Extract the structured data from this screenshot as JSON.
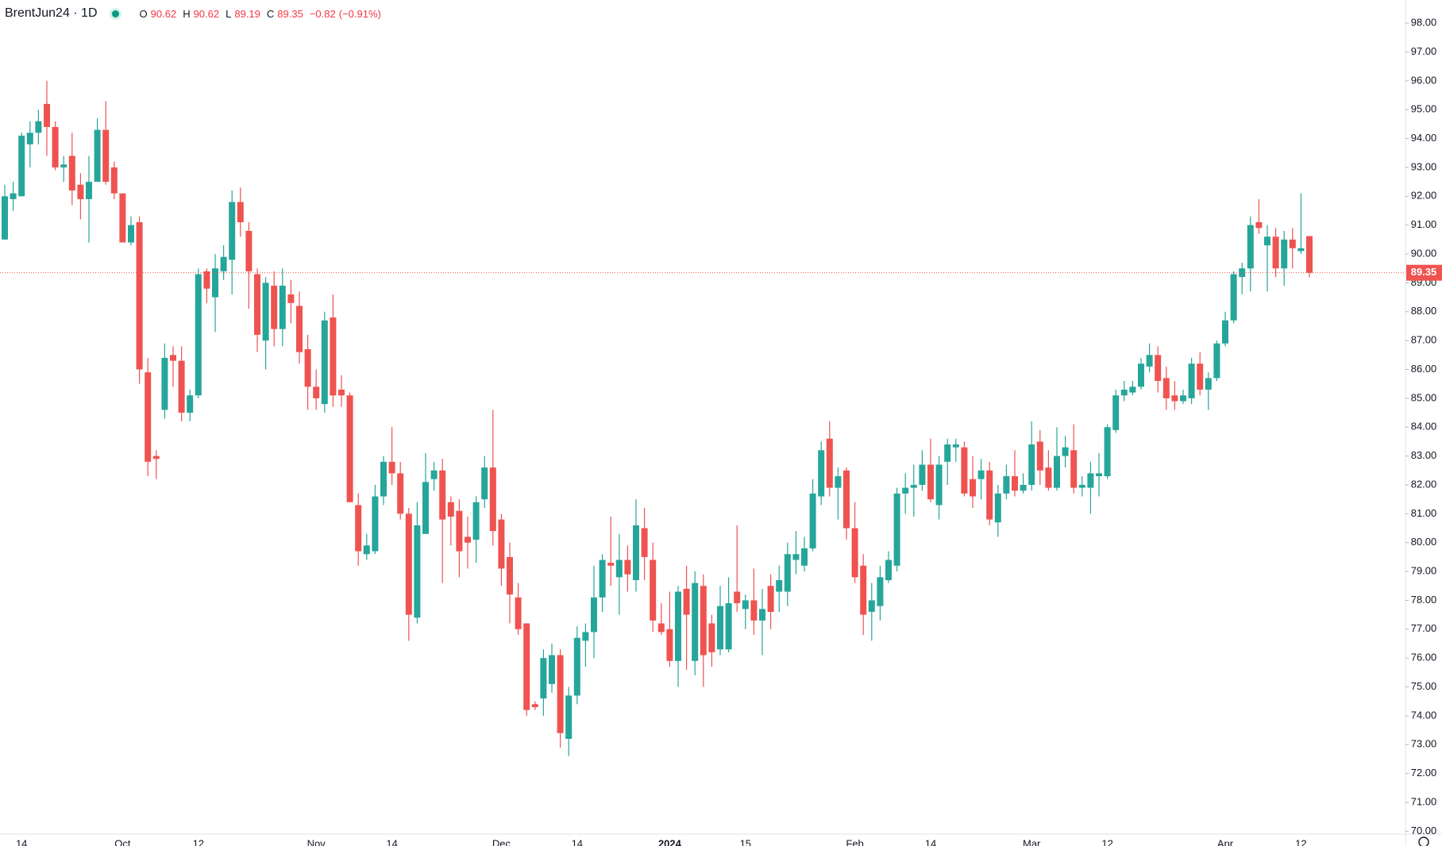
{
  "chart_data": {
    "type": "candlestick",
    "title": "BrentJun24 · 1D",
    "ohlc_labels": [
      "O",
      "H",
      "L",
      "C"
    ],
    "change": "−0.82",
    "change_percent": "(−0.91%)",
    "up_color": "#26a69a",
    "down_color": "#ef5350",
    "categories": [
      null,
      null,
      "14",
      null,
      null,
      null,
      null,
      null,
      null,
      null,
      null,
      null,
      null,
      null,
      "Oct",
      null,
      null,
      null,
      null,
      null,
      null,
      null,
      null,
      "12",
      null,
      null,
      null,
      null,
      null,
      null,
      null,
      null,
      null,
      null,
      null,
      null,
      null,
      "Nov",
      null,
      null,
      null,
      null,
      null,
      null,
      null,
      null,
      "14",
      null,
      null,
      null,
      null,
      null,
      null,
      null,
      null,
      null,
      null,
      null,
      null,
      "Dec",
      null,
      null,
      null,
      null,
      null,
      null,
      null,
      null,
      "14",
      null,
      null,
      null,
      null,
      null,
      null,
      null,
      null,
      null,
      null,
      "2024",
      null,
      null,
      null,
      null,
      null,
      null,
      null,
      null,
      "15",
      null,
      null,
      null,
      null,
      null,
      null,
      null,
      null,
      null,
      null,
      null,
      null,
      "Feb",
      null,
      null,
      null,
      null,
      null,
      null,
      null,
      null,
      "14",
      null,
      null,
      null,
      null,
      null,
      null,
      null,
      null,
      null,
      null,
      null,
      "Mar",
      null,
      null,
      null,
      null,
      null,
      null,
      null,
      null,
      "12",
      null,
      null,
      null,
      null,
      null,
      null,
      null,
      null,
      null,
      null,
      null,
      null,
      null,
      "Apr",
      null,
      null,
      null,
      null,
      null,
      null,
      null,
      null,
      "12",
      null
    ],
    "open": [
      90.5,
      91.9,
      92.0,
      93.8,
      94.2,
      95.2,
      94.4,
      93.0,
      93.4,
      92.4,
      91.9,
      92.5,
      94.3,
      93.0,
      92.1,
      90.4,
      91.1,
      85.9,
      83.0,
      84.6,
      86.5,
      86.3,
      84.5,
      85.1,
      89.4,
      88.5,
      89.4,
      89.8,
      91.8,
      90.8,
      89.3,
      87.0,
      88.9,
      87.4,
      88.6,
      88.2,
      86.7,
      85.4,
      84.8,
      87.8,
      85.3,
      85.1,
      81.3,
      79.6,
      79.7,
      81.6,
      82.8,
      82.4,
      81.0,
      77.4,
      80.3,
      82.2,
      82.5,
      81.4,
      81.1,
      80.2,
      80.1,
      81.5,
      82.6,
      80.8,
      79.5,
      78.1,
      77.2,
      74.4,
      74.6,
      75.1,
      76.1,
      73.2,
      74.7,
      76.6,
      76.9,
      78.1,
      79.3,
      78.8,
      79.4,
      78.7,
      80.5,
      79.4,
      77.2,
      77.0,
      75.9,
      78.4,
      75.9,
      78.5,
      77.2,
      76.3,
      76.3,
      78.3,
      77.7,
      78.0,
      77.3,
      78.5,
      78.3,
      78.3,
      79.4,
      79.2,
      79.8,
      81.6,
      83.6,
      81.9,
      82.5,
      80.5,
      79.2,
      77.6,
      77.8,
      78.7,
      79.2,
      81.7,
      81.9,
      82.0,
      82.7,
      81.3,
      82.8,
      83.3,
      83.3,
      82.2,
      82.2,
      82.5,
      80.7,
      81.7,
      82.3,
      81.8,
      82.0,
      83.5,
      82.6,
      81.9,
      83.0,
      83.2,
      81.9,
      81.9,
      82.3,
      82.3,
      83.9,
      85.1,
      85.2,
      85.4,
      86.1,
      86.5,
      85.7,
      85.1,
      84.9,
      85.0,
      86.2,
      85.3,
      85.7,
      86.9,
      87.7,
      89.2,
      89.5,
      91.1,
      90.3,
      90.6,
      89.5,
      90.5,
      90.1,
      90.62
    ],
    "high": [
      92.4,
      92.5,
      94.2,
      94.6,
      95.0,
      96.0,
      94.6,
      93.4,
      94.2,
      92.8,
      93.4,
      94.7,
      95.3,
      93.2,
      92.1,
      91.3,
      91.3,
      86.4,
      83.2,
      86.9,
      86.8,
      86.8,
      85.3,
      89.5,
      89.5,
      90.0,
      90.3,
      92.2,
      92.3,
      91.1,
      89.5,
      89.2,
      89.4,
      89.5,
      89.1,
      88.7,
      87.2,
      86.0,
      88.0,
      88.6,
      85.8,
      85.2,
      81.7,
      80.3,
      82.0,
      83.0,
      84.0,
      82.8,
      81.2,
      81.4,
      83.1,
      82.8,
      82.9,
      81.6,
      81.5,
      80.9,
      81.6,
      83.0,
      84.6,
      81.0,
      80.0,
      78.6,
      77.2,
      74.5,
      76.3,
      76.5,
      76.3,
      75.0,
      77.1,
      77.2,
      79.2,
      79.6,
      80.9,
      80.3,
      79.9,
      81.5,
      81.2,
      80.0,
      77.9,
      78.3,
      78.5,
      79.2,
      79.0,
      78.9,
      77.5,
      78.5,
      78.8,
      80.6,
      78.2,
      79.1,
      78.4,
      78.9,
      79.2,
      80.0,
      80.4,
      80.2,
      82.2,
      83.5,
      84.2,
      82.6,
      82.6,
      81.4,
      79.6,
      78.6,
      79.2,
      79.7,
      81.9,
      82.4,
      82.7,
      83.2,
      83.6,
      83.0,
      83.6,
      83.6,
      83.5,
      83.0,
      82.9,
      82.8,
      82.0,
      82.7,
      83.2,
      82.4,
      84.2,
      83.9,
      83.2,
      84.0,
      83.7,
      84.1,
      82.3,
      82.8,
      83.1,
      84.1,
      85.3,
      85.6,
      85.6,
      86.4,
      86.9,
      86.8,
      86.1,
      85.6,
      85.3,
      86.4,
      86.6,
      85.9,
      87.0,
      88.0,
      89.4,
      89.7,
      91.3,
      91.9,
      91.0,
      90.9,
      90.8,
      90.9,
      92.1,
      90.62
    ],
    "low": [
      90.5,
      91.5,
      92.0,
      93.0,
      93.8,
      93.4,
      92.9,
      92.5,
      91.7,
      91.2,
      90.4,
      92.5,
      92.4,
      91.9,
      90.4,
      90.3,
      85.5,
      82.3,
      82.2,
      84.3,
      85.4,
      84.2,
      84.2,
      85.0,
      88.3,
      87.3,
      89.1,
      88.6,
      90.6,
      88.1,
      86.6,
      86.0,
      86.8,
      86.8,
      87.6,
      86.2,
      84.6,
      84.6,
      84.5,
      84.7,
      84.7,
      81.4,
      79.2,
      79.4,
      79.6,
      81.3,
      82.0,
      80.8,
      76.6,
      77.2,
      80.3,
      81.8,
      78.6,
      79.9,
      78.8,
      79.1,
      79.3,
      81.2,
      79.9,
      78.5,
      77.2,
      76.8,
      74.0,
      74.2,
      74.0,
      74.8,
      72.9,
      72.6,
      74.4,
      75.7,
      76.0,
      77.6,
      78.5,
      77.5,
      78.3,
      78.3,
      78.7,
      76.9,
      76.8,
      75.7,
      75.0,
      75.6,
      75.4,
      75.0,
      75.7,
      76.1,
      76.2,
      77.6,
      77.0,
      76.8,
      76.1,
      77.0,
      77.6,
      77.8,
      78.9,
      79.0,
      79.7,
      81.3,
      81.6,
      80.8,
      80.1,
      78.6,
      76.8,
      76.6,
      77.3,
      78.6,
      79.0,
      81.0,
      80.9,
      81.8,
      81.4,
      80.8,
      82.0,
      82.8,
      81.6,
      81.2,
      81.5,
      80.6,
      80.2,
      81.5,
      81.6,
      81.7,
      81.8,
      82.0,
      81.8,
      81.8,
      82.6,
      81.7,
      81.6,
      81.0,
      81.6,
      82.2,
      83.8,
      84.9,
      85.1,
      85.3,
      85.9,
      85.2,
      84.6,
      84.6,
      84.8,
      84.8,
      85.1,
      84.6,
      85.6,
      86.8,
      87.6,
      88.6,
      88.7,
      90.7,
      88.7,
      89.2,
      88.9,
      89.5,
      90.0,
      89.19
    ],
    "close": [
      92.0,
      92.1,
      94.1,
      94.2,
      94.6,
      94.4,
      93.0,
      93.1,
      92.2,
      91.9,
      92.5,
      94.3,
      92.5,
      92.1,
      90.4,
      91.0,
      86.0,
      82.8,
      82.9,
      86.4,
      86.3,
      84.5,
      85.1,
      89.3,
      88.8,
      89.5,
      89.9,
      91.8,
      91.1,
      89.4,
      87.2,
      89.0,
      87.4,
      88.9,
      88.3,
      86.6,
      85.4,
      85.0,
      87.7,
      85.1,
      85.1,
      81.4,
      79.7,
      79.9,
      81.6,
      82.8,
      82.4,
      81.0,
      77.5,
      80.6,
      82.1,
      82.5,
      80.8,
      80.9,
      79.7,
      80.0,
      81.4,
      82.6,
      80.4,
      79.1,
      78.2,
      77.0,
      74.2,
      74.3,
      76.0,
      76.1,
      73.4,
      74.7,
      76.7,
      76.9,
      78.1,
      79.4,
      79.2,
      79.4,
      78.9,
      80.6,
      79.5,
      77.3,
      76.9,
      75.9,
      78.3,
      77.5,
      78.6,
      76.1,
      76.2,
      77.8,
      77.9,
      77.9,
      78.0,
      77.3,
      77.7,
      77.6,
      78.7,
      79.6,
      79.6,
      79.8,
      81.7,
      83.2,
      81.9,
      82.3,
      80.5,
      78.8,
      77.5,
      78.0,
      78.8,
      79.4,
      81.7,
      81.9,
      82.0,
      82.7,
      81.5,
      82.7,
      83.4,
      83.4,
      81.7,
      81.6,
      82.5,
      80.8,
      81.7,
      82.3,
      81.8,
      82.0,
      83.4,
      82.5,
      81.9,
      83.0,
      83.3,
      81.9,
      82.0,
      82.4,
      82.4,
      84.0,
      85.1,
      85.3,
      85.4,
      86.2,
      86.5,
      85.6,
      85.0,
      84.9,
      85.1,
      86.2,
      85.3,
      85.7,
      86.9,
      87.7,
      89.3,
      89.5,
      91.0,
      90.9,
      90.6,
      89.5,
      90.5,
      90.2,
      90.2,
      89.35
    ],
    "ylim": [
      69.9,
      98.8
    ],
    "yticks": [
      {
        "value": 70,
        "label": "70.00"
      },
      {
        "value": 71,
        "label": "71.00"
      },
      {
        "value": 72,
        "label": "72.00"
      },
      {
        "value": 73,
        "label": "73.00"
      },
      {
        "value": 74,
        "label": "74.00"
      },
      {
        "value": 75,
        "label": "75.00"
      },
      {
        "value": 76,
        "label": "76.00"
      },
      {
        "value": 77,
        "label": "77.00"
      },
      {
        "value": 78,
        "label": "78.00"
      },
      {
        "value": 79,
        "label": "79.00"
      },
      {
        "value": 80,
        "label": "80.00"
      },
      {
        "value": 81,
        "label": "81.00"
      },
      {
        "value": 82,
        "label": "82.00"
      },
      {
        "value": 83,
        "label": "83.00"
      },
      {
        "value": 84,
        "label": "84.00"
      },
      {
        "value": 85,
        "label": "85.00"
      },
      {
        "value": 86,
        "label": "86.00"
      },
      {
        "value": 87,
        "label": "87.00"
      },
      {
        "value": 88,
        "label": "88.00"
      },
      {
        "value": 89,
        "label": "89.00"
      },
      {
        "value": 90,
        "label": "90.00"
      },
      {
        "value": 91,
        "label": "91.00"
      },
      {
        "value": 92,
        "label": "92.00"
      },
      {
        "value": 93,
        "label": "93.00"
      },
      {
        "value": 94,
        "label": "94.00"
      },
      {
        "value": 95,
        "label": "95.00"
      },
      {
        "value": 96,
        "label": "96.00"
      },
      {
        "value": 97,
        "label": "97.00"
      },
      {
        "value": 98,
        "label": "98.00"
      }
    ],
    "grid": false
  }
}
